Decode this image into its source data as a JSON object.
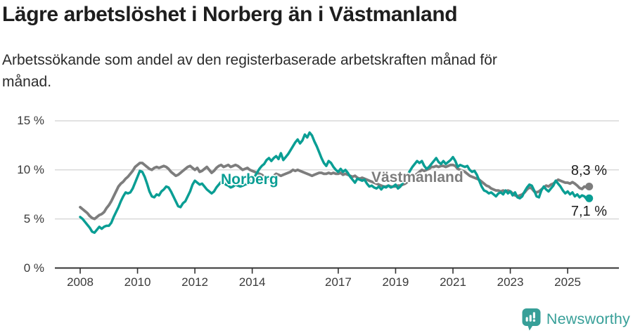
{
  "header": {
    "title": "Lägre arbetslöshet i Norberg än i Västmanland",
    "subtitle_lines": [
      "Arbetssökande som andel av den registerbaserade arbetskraften månad för",
      "månad."
    ]
  },
  "chart_data": {
    "type": "line",
    "title": "Lägre arbetslöshet i Norberg än i Västmanland",
    "subtitle": "Arbetssökande som andel av den registerbaserade arbetskraften månad för månad.",
    "x_unit": "month",
    "x_start": "2008-01",
    "x_end": "2025-10",
    "x_axis": {
      "tick_years": [
        2008,
        2010,
        2012,
        2014,
        2017,
        2019,
        2021,
        2023,
        2025
      ],
      "tick_labels": [
        "2008",
        "2010",
        "2012",
        "2014",
        "2017",
        "2019",
        "2021",
        "2023",
        "2025"
      ]
    },
    "y_axis": {
      "tick_values": [
        0,
        5,
        10,
        15
      ],
      "tick_labels": [
        "0 %",
        "5 %",
        "10 %",
        "15 %"
      ],
      "range": [
        0,
        15
      ],
      "grid": true
    },
    "legend": "inline-series-labels",
    "series": [
      {
        "name": "Norberg",
        "color": "#0a9e94",
        "end_label": "7,1 %",
        "end_value": 7.1,
        "values": [
          5.2,
          5.0,
          4.7,
          4.4,
          4.1,
          3.7,
          3.6,
          3.9,
          4.2,
          4.0,
          4.2,
          4.3,
          4.3,
          4.6,
          5.2,
          5.7,
          6.2,
          6.8,
          7.3,
          7.7,
          7.6,
          7.7,
          8.1,
          8.7,
          9.3,
          9.9,
          9.8,
          9.3,
          8.6,
          7.8,
          7.3,
          7.2,
          7.5,
          7.4,
          7.8,
          8.0,
          8.3,
          8.2,
          7.8,
          7.3,
          6.8,
          6.3,
          6.2,
          6.6,
          6.8,
          7.3,
          7.8,
          8.5,
          8.9,
          8.7,
          8.5,
          8.6,
          8.3,
          8.0,
          7.8,
          7.6,
          7.8,
          8.2,
          8.5,
          8.8,
          8.7,
          8.5,
          8.4,
          8.2,
          8.3,
          8.5,
          8.4,
          8.3,
          8.4,
          8.5,
          8.6,
          8.7,
          9.0,
          9.3,
          9.7,
          10.1,
          10.4,
          10.6,
          11.0,
          11.2,
          10.9,
          11.2,
          11.4,
          11.1,
          11.7,
          11.0,
          11.3,
          11.6,
          12.0,
          12.4,
          12.8,
          13.1,
          12.7,
          13.0,
          13.6,
          13.3,
          13.8,
          13.5,
          12.9,
          12.4,
          11.8,
          11.2,
          10.7,
          10.4,
          10.9,
          10.7,
          10.3,
          10.0,
          9.8,
          10.1,
          9.8,
          10.0,
          9.7,
          9.3,
          9.0,
          8.7,
          9.1,
          9.0,
          8.9,
          9.0,
          8.6,
          8.3,
          8.4,
          8.2,
          8.1,
          8.3,
          8.0,
          8.3,
          8.2,
          8.4,
          8.2,
          8.3,
          8.5,
          8.1,
          8.3,
          8.7,
          9.2,
          9.5,
          9.9,
          10.3,
          10.6,
          10.9,
          10.7,
          10.9,
          10.4,
          10.1,
          10.3,
          10.6,
          10.9,
          11.2,
          10.8,
          10.6,
          10.9,
          10.6,
          10.8,
          11.0,
          11.3,
          10.9,
          10.3,
          10.5,
          10.4,
          10.3,
          10.4,
          10.0,
          9.8,
          9.9,
          9.5,
          8.9,
          8.3,
          7.9,
          7.8,
          7.6,
          7.7,
          7.5,
          7.3,
          7.6,
          7.7,
          7.5,
          7.9,
          7.6,
          7.8,
          7.4,
          7.7,
          7.2,
          7.1,
          7.3,
          7.8,
          8.2,
          8.5,
          8.4,
          7.9,
          7.3,
          7.2,
          7.9,
          8.3,
          8.0,
          7.8,
          8.1,
          8.4,
          8.9,
          8.6,
          8.3,
          7.9,
          7.6,
          7.8,
          7.5,
          7.7,
          7.3,
          7.5,
          7.2,
          7.4,
          7.3,
          7.0,
          7.1
        ]
      },
      {
        "name": "Västmanland",
        "color": "#7d7d7d",
        "end_label": "8,3 %",
        "end_value": 8.3,
        "values": [
          6.2,
          6.0,
          5.8,
          5.6,
          5.3,
          5.1,
          5.0,
          5.2,
          5.4,
          5.5,
          5.7,
          6.1,
          6.4,
          6.8,
          7.3,
          7.8,
          8.3,
          8.6,
          8.8,
          9.1,
          9.3,
          9.6,
          9.9,
          10.3,
          10.5,
          10.7,
          10.7,
          10.5,
          10.3,
          10.1,
          10.0,
          10.2,
          10.3,
          10.2,
          10.3,
          10.4,
          10.3,
          10.1,
          9.8,
          9.6,
          9.4,
          9.5,
          9.7,
          9.9,
          10.1,
          10.3,
          10.4,
          10.2,
          10.0,
          10.2,
          9.8,
          9.9,
          10.1,
          10.3,
          10.0,
          9.7,
          9.9,
          10.2,
          10.4,
          10.5,
          10.3,
          10.4,
          10.5,
          10.3,
          10.4,
          10.5,
          10.4,
          10.2,
          10.0,
          10.1,
          10.2,
          10.0,
          9.9,
          9.8,
          9.7,
          9.6,
          9.5,
          9.3,
          9.2,
          9.1,
          9.2,
          9.4,
          9.6,
          9.5,
          9.4,
          9.5,
          9.6,
          9.7,
          9.8,
          10.0,
          9.9,
          10.0,
          9.9,
          9.8,
          9.7,
          9.6,
          9.5,
          9.4,
          9.5,
          9.6,
          9.7,
          9.7,
          9.6,
          9.6,
          9.7,
          9.6,
          9.7,
          9.6,
          9.6,
          9.7,
          9.5,
          9.6,
          9.5,
          9.4,
          9.3,
          9.4,
          9.2,
          9.1,
          9.2,
          9.1,
          9.0,
          8.9,
          8.8,
          8.7,
          8.6,
          8.5,
          8.4,
          8.3,
          8.3,
          8.4,
          8.3,
          8.3,
          8.3,
          8.4,
          8.4,
          8.5,
          8.6,
          8.8,
          9.0,
          9.2,
          9.4,
          9.6,
          9.8,
          10.0,
          9.9,
          10.0,
          10.1,
          10.3,
          10.3,
          10.4,
          10.3,
          10.4,
          10.4,
          10.3,
          10.4,
          10.5,
          10.5,
          10.4,
          10.1,
          10.0,
          9.9,
          9.8,
          9.6,
          9.4,
          9.3,
          9.2,
          9.1,
          9.0,
          8.8,
          8.6,
          8.4,
          8.3,
          8.1,
          8.0,
          7.9,
          7.9,
          7.8,
          7.9,
          7.8,
          7.9,
          7.8,
          7.6,
          7.4,
          7.3,
          7.4,
          7.5,
          7.7,
          8.0,
          8.2,
          8.1,
          7.8,
          7.7,
          7.8,
          8.0,
          8.2,
          8.4,
          8.3,
          8.5,
          8.6,
          8.8,
          9.0,
          8.9,
          8.8,
          8.7,
          8.7,
          8.6,
          8.75,
          8.6,
          8.4,
          8.15,
          8.05,
          8.3,
          8.2,
          8.3
        ]
      }
    ]
  },
  "footer": {
    "brand": "Newsworthy",
    "logo_icon": "bar-chart-speech-bubble",
    "brand_color": "#379f98"
  },
  "colors": {
    "background": "#ffffff",
    "title": "#1e1e1e",
    "axis_text": "#3a3a3a",
    "gridline": "#d9d9d9",
    "axis_line": "#333333",
    "norberg": "#0a9e94",
    "vastmanland": "#7d7d7d",
    "end_label_text": "#1c1c1c"
  }
}
